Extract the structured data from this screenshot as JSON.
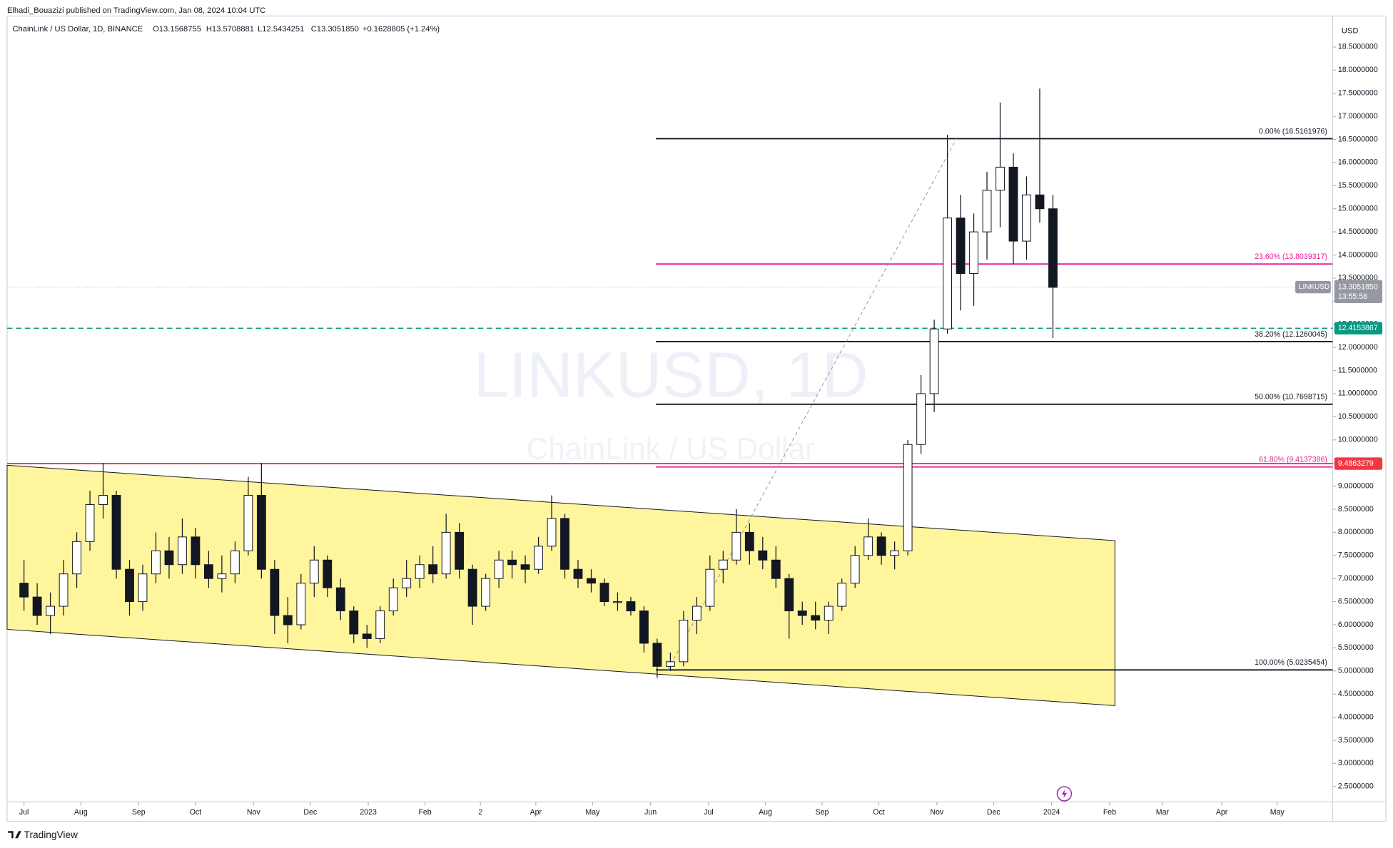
{
  "header": "Elhadi_Bouazizi published on TradingView.com, Jan 08, 2024 10:04 UTC",
  "footer": "TradingView",
  "chart_data": {
    "type": "candlestick",
    "symbol_line": "ChainLink / US Dollar, 1D, BINANCE",
    "ohlc_legend": [
      "O13.1568755",
      "H13.5708881",
      "L12.5434251",
      "C13.3051850",
      "+0.1628805 (+1.24%)"
    ],
    "watermark": [
      "LINKUSD, 1D",
      "ChainLink / US Dollar"
    ],
    "currency": "USD",
    "up_color": "#ffffff",
    "down_color": "#131722",
    "wick_color": "#131722",
    "open": [
      6.9,
      6.6,
      6.2,
      6.4,
      7.1,
      7.8,
      8.6,
      8.8,
      7.2,
      6.5,
      7.1,
      7.6,
      7.3,
      7.9,
      7.3,
      7.0,
      7.1,
      7.6,
      8.8,
      7.2,
      6.2,
      6.0,
      6.9,
      7.4,
      6.8,
      6.3,
      5.8,
      5.7,
      6.3,
      6.8,
      7.0,
      7.3,
      7.1,
      8.0,
      7.2,
      6.4,
      7.0,
      7.4,
      7.3,
      7.2,
      7.7,
      8.3,
      7.2,
      7.0,
      6.9,
      6.5,
      6.5,
      6.3,
      5.6,
      5.1,
      5.2,
      6.1,
      6.4,
      7.2,
      7.4,
      8.0,
      7.6,
      7.4,
      7.0,
      6.3,
      6.2,
      6.1,
      6.4,
      6.9,
      7.5,
      7.9,
      7.5,
      7.6,
      9.9,
      11.0,
      12.4,
      14.8,
      13.6,
      14.5,
      15.4,
      15.9,
      14.3,
      15.3,
      15.0
    ],
    "high": [
      7.4,
      6.9,
      6.7,
      7.4,
      8.0,
      8.9,
      9.5,
      8.9,
      7.4,
      7.3,
      8.0,
      7.9,
      8.3,
      8.1,
      7.6,
      7.5,
      7.8,
      9.2,
      9.5,
      7.4,
      6.6,
      7.1,
      7.7,
      7.5,
      7.0,
      6.4,
      6.0,
      6.4,
      7.0,
      7.4,
      7.5,
      7.7,
      8.4,
      8.2,
      7.3,
      7.1,
      7.6,
      7.6,
      7.5,
      7.9,
      8.8,
      8.4,
      7.4,
      7.2,
      7.0,
      6.7,
      6.6,
      6.4,
      5.7,
      5.4,
      6.3,
      6.6,
      7.5,
      7.6,
      8.5,
      8.2,
      7.9,
      7.7,
      7.1,
      6.5,
      6.5,
      6.5,
      7.0,
      7.7,
      8.3,
      8.0,
      7.8,
      10.0,
      11.4,
      12.6,
      16.6,
      15.3,
      14.9,
      15.8,
      17.3,
      16.2,
      15.7,
      17.6,
      15.3
    ],
    "low": [
      6.3,
      6.0,
      5.8,
      6.2,
      6.8,
      7.6,
      8.3,
      7.0,
      6.2,
      6.3,
      6.9,
      7.0,
      7.1,
      7.0,
      6.8,
      6.7,
      6.9,
      7.5,
      7.0,
      5.8,
      5.6,
      5.9,
      6.6,
      6.6,
      6.1,
      5.6,
      5.5,
      5.6,
      6.2,
      6.6,
      6.8,
      6.9,
      7.0,
      7.0,
      6.0,
      6.3,
      6.8,
      7.0,
      6.9,
      7.1,
      7.6,
      7.0,
      6.8,
      6.7,
      6.4,
      6.3,
      6.2,
      5.4,
      4.85,
      5.0,
      5.1,
      5.8,
      6.3,
      6.9,
      7.3,
      7.3,
      7.2,
      6.8,
      5.7,
      6.0,
      5.9,
      5.8,
      6.3,
      6.8,
      7.4,
      7.3,
      7.2,
      7.5,
      9.7,
      10.6,
      12.3,
      12.8,
      12.9,
      13.9,
      14.6,
      13.8,
      13.9,
      14.7,
      12.2
    ],
    "close": [
      6.6,
      6.2,
      6.4,
      7.1,
      7.8,
      8.6,
      8.8,
      7.2,
      6.5,
      7.1,
      7.6,
      7.3,
      7.9,
      7.3,
      7.0,
      7.1,
      7.6,
      8.8,
      7.2,
      6.2,
      6.0,
      6.9,
      7.4,
      6.8,
      6.3,
      5.8,
      5.7,
      6.3,
      6.8,
      7.0,
      7.3,
      7.1,
      8.0,
      7.2,
      6.4,
      7.0,
      7.4,
      7.3,
      7.2,
      7.7,
      8.3,
      7.2,
      7.0,
      6.9,
      6.5,
      6.5,
      6.3,
      5.6,
      5.1,
      5.2,
      6.1,
      6.4,
      7.2,
      7.4,
      8.0,
      7.6,
      7.4,
      7.0,
      6.3,
      6.2,
      6.1,
      6.4,
      6.9,
      7.5,
      7.9,
      7.5,
      7.6,
      9.9,
      11.0,
      12.4,
      14.8,
      13.6,
      14.5,
      15.4,
      15.9,
      14.3,
      15.3,
      15.0,
      13.3
    ],
    "xlim": [
      -1.28,
      99.2
    ],
    "xticks": [
      {
        "value": 0,
        "label": "Jul"
      },
      {
        "value": 4.31,
        "label": "Aug"
      },
      {
        "value": 8.69,
        "label": "Sep"
      },
      {
        "value": 13.0,
        "label": "Oct"
      },
      {
        "value": 17.4,
        "label": "Nov"
      },
      {
        "value": 21.7,
        "label": "Dec"
      },
      {
        "value": 26.1,
        "label": "2023"
      },
      {
        "value": 30.4,
        "label": "Feb"
      },
      {
        "value": 34.6,
        "label": "2"
      },
      {
        "value": 38.8,
        "label": "Apr"
      },
      {
        "value": 43.1,
        "label": "May"
      },
      {
        "value": 47.5,
        "label": "Jun"
      },
      {
        "value": 51.9,
        "label": "Jul"
      },
      {
        "value": 56.2,
        "label": "Aug"
      },
      {
        "value": 60.5,
        "label": "Sep"
      },
      {
        "value": 64.8,
        "label": "Oct"
      },
      {
        "value": 69.2,
        "label": "Nov"
      },
      {
        "value": 73.5,
        "label": "Dec"
      },
      {
        "value": 77.9,
        "label": "2024"
      },
      {
        "value": 82.3,
        "label": "Feb"
      },
      {
        "value": 86.3,
        "label": "Mar"
      },
      {
        "value": 90.8,
        "label": "Apr"
      },
      {
        "value": 95.0,
        "label": "May"
      }
    ],
    "ylim": [
      2.17,
      19.17
    ],
    "yticks": [
      {
        "value": 18.5,
        "label": "18.5000000"
      },
      {
        "value": 18.0,
        "label": "18.0000000"
      },
      {
        "value": 17.5,
        "label": "17.5000000"
      },
      {
        "value": 17.0,
        "label": "17.0000000"
      },
      {
        "value": 16.5,
        "label": "16.5000000"
      },
      {
        "value": 16.0,
        "label": "16.0000000"
      },
      {
        "value": 15.5,
        "label": "15.5000000"
      },
      {
        "value": 15.0,
        "label": "15.0000000"
      },
      {
        "value": 14.5,
        "label": "14.5000000"
      },
      {
        "value": 14.0,
        "label": "14.0000000"
      },
      {
        "value": 13.5,
        "label": "13.5000000"
      },
      {
        "value": 13.0,
        "label": "13.0000000"
      },
      {
        "value": 12.5,
        "label": "12.5000000"
      },
      {
        "value": 12.0,
        "label": "12.0000000"
      },
      {
        "value": 11.5,
        "label": "11.5000000"
      },
      {
        "value": 11.0,
        "label": "11.0000000"
      },
      {
        "value": 10.5,
        "label": "10.5000000"
      },
      {
        "value": 10.0,
        "label": "10.0000000"
      },
      {
        "value": 9.5,
        "label": "9.5000000"
      },
      {
        "value": 9.0,
        "label": "9.0000000"
      },
      {
        "value": 8.5,
        "label": "8.5000000"
      },
      {
        "value": 8.0,
        "label": "8.0000000"
      },
      {
        "value": 7.5,
        "label": "7.5000000"
      },
      {
        "value": 7.0,
        "label": "7.0000000"
      },
      {
        "value": 6.5,
        "label": "6.5000000"
      },
      {
        "value": 6.0,
        "label": "6.0000000"
      },
      {
        "value": 5.5,
        "label": "5.5000000"
      },
      {
        "value": 5.0,
        "label": "5.0000000"
      },
      {
        "value": 4.5,
        "label": "4.5000000"
      },
      {
        "value": 4.0,
        "label": "4.0000000"
      },
      {
        "value": 3.5,
        "label": "3.5000000"
      },
      {
        "value": 3.0,
        "label": "3.0000000"
      },
      {
        "value": 2.5,
        "label": "2.5000000"
      }
    ],
    "channel": {
      "x": [
        -1.28,
        82.7
      ],
      "upper": [
        9.45,
        7.82
      ],
      "lower": [
        5.9,
        4.25
      ],
      "color": "#fff59d"
    },
    "trend_line": {
      "x": [
        48.8,
        70.7
      ],
      "y": [
        5.02,
        16.52
      ]
    },
    "fib_start": 47.9,
    "fib_levels": [
      {
        "value": 16.5161976,
        "label": "0.00% (16.5161976)",
        "color": "#131722"
      },
      {
        "value": 13.8039317,
        "label": "23.60% (13.8039317)",
        "color": "#e91e9c"
      },
      {
        "value": 12.1260045,
        "label": "38.20% (12.1260045)",
        "color": "#131722"
      },
      {
        "value": 10.7698715,
        "label": "50.00% (10.7698715)",
        "color": "#131722"
      },
      {
        "value": 9.4137386,
        "label": "61.80% (9.4137386)",
        "color": "#e91e9c"
      },
      {
        "value": 5.0235454,
        "label": "100.00% (5.0235454)",
        "color": "#131722"
      }
    ],
    "resistance": {
      "value": 9.4863279,
      "color": "#f23645"
    },
    "support": {
      "value": 12.4153867,
      "color": "#089981"
    },
    "last_price": {
      "symbol": "LINKUSD",
      "value": 13.305185,
      "label": "13.3051850",
      "countdown": "13:55:58"
    }
  }
}
